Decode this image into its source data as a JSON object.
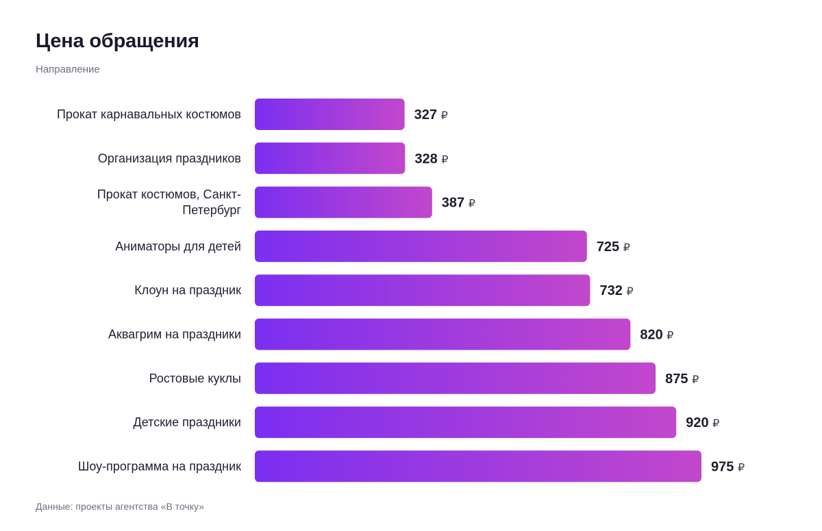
{
  "header": {
    "title": "Цена обращения",
    "subtitle": "Направление"
  },
  "footer": {
    "source": "Данные: проекты агентства «В точку»"
  },
  "colors": {
    "bar_gradient_start": "#7b2ff0",
    "bar_gradient_end": "#c247cc",
    "text": "#1c1c2a",
    "muted": "#6b7080"
  },
  "chart_data": {
    "type": "bar",
    "orientation": "horizontal",
    "title": "Цена обращения",
    "subtitle": "Направление",
    "currency": "₽",
    "categories": [
      "Прокат карнавальных костюмов",
      "Организация праздников",
      "Прокат костюмов, Санкт-Петербург",
      "Аниматоры для детей",
      "Клоун на праздник",
      "Аквагрим на праздники",
      "Ростовые куклы",
      "Детские праздники",
      "Шоу-программа на праздник"
    ],
    "category_lines": [
      [
        "Прокат карнавальных костюмов"
      ],
      [
        "Организация праздников"
      ],
      [
        "Прокат костюмов, Санкт-",
        "Петербург"
      ],
      [
        "Аниматоры для детей"
      ],
      [
        "Клоун на праздник"
      ],
      [
        "Аквагрим на праздники"
      ],
      [
        "Ростовые куклы"
      ],
      [
        "Детские праздники"
      ],
      [
        "Шоу-программа на праздник"
      ]
    ],
    "values": [
      327,
      328,
      387,
      725,
      732,
      820,
      875,
      920,
      975
    ],
    "xlim": [
      0,
      975
    ],
    "grid": false,
    "legend": "none",
    "data_labels": true
  }
}
